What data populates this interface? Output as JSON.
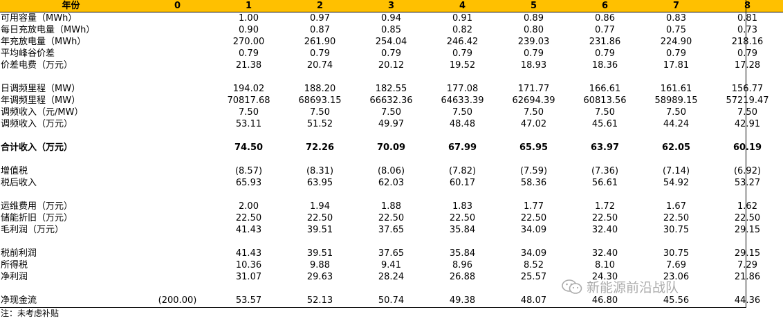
{
  "header": [
    "年份",
    "0",
    "1",
    "2",
    "3",
    "4",
    "5",
    "6",
    "7",
    "8"
  ],
  "rows": [
    {
      "label": "可用容量（MWh）",
      "values": [
        "",
        "1.00",
        "0.97",
        "0.94",
        "0.91",
        "0.89",
        "0.86",
        "0.83",
        "0.81"
      ]
    },
    {
      "label": "每日充放电量（MWh）",
      "values": [
        "",
        "0.90",
        "0.87",
        "0.85",
        "0.82",
        "0.80",
        "0.77",
        "0.75",
        "0.73"
      ]
    },
    {
      "label": "年充放电量（MWh）",
      "values": [
        "",
        "270.00",
        "261.90",
        "254.04",
        "246.42",
        "239.03",
        "231.86",
        "224.90",
        "218.16"
      ]
    },
    {
      "label": "平均峰谷价差",
      "values": [
        "",
        "0.79",
        "0.79",
        "0.79",
        "0.79",
        "0.79",
        "0.79",
        "0.79",
        "0.79"
      ]
    },
    {
      "label": "价差电费（万元）",
      "values": [
        "",
        "21.38",
        "20.74",
        "20.12",
        "19.52",
        "18.93",
        "18.36",
        "17.81",
        "17.28"
      ]
    },
    {
      "spacer": true
    },
    {
      "label": "日调频里程（MW）",
      "values": [
        "",
        "194.02",
        "188.20",
        "182.55",
        "177.08",
        "171.77",
        "166.61",
        "161.61",
        "156.77"
      ]
    },
    {
      "label": "年调频里程（MW）",
      "values": [
        "",
        "70817.68",
        "68693.15",
        "66632.36",
        "64633.39",
        "62694.39",
        "60813.56",
        "58989.15",
        "57219.47"
      ]
    },
    {
      "label": "调频收入（元/MW）",
      "values": [
        "",
        "7.50",
        "7.50",
        "7.50",
        "7.50",
        "7.50",
        "7.50",
        "7.50",
        "7.50"
      ]
    },
    {
      "label": "调频收入（万元）",
      "values": [
        "",
        "53.11",
        "51.52",
        "49.97",
        "48.48",
        "47.02",
        "45.61",
        "44.24",
        "42.91"
      ]
    },
    {
      "spacer": true
    },
    {
      "label": "合计收入（万元）",
      "bold": true,
      "values": [
        "",
        "74.50",
        "72.26",
        "70.09",
        "67.99",
        "65.95",
        "63.97",
        "62.05",
        "60.19"
      ]
    },
    {
      "spacer": true
    },
    {
      "label": "增值税",
      "values": [
        "",
        "(8.57)",
        "(8.31)",
        "(8.06)",
        "(7.82)",
        "(7.59)",
        "(7.36)",
        "(7.14)",
        "(6.92)"
      ]
    },
    {
      "label": "税后收入",
      "values": [
        "",
        "65.93",
        "63.95",
        "62.03",
        "60.17",
        "58.36",
        "56.61",
        "54.92",
        "53.27"
      ]
    },
    {
      "spacer": true
    },
    {
      "label": "运维费用（万元）",
      "values": [
        "",
        "2.00",
        "1.94",
        "1.88",
        "1.83",
        "1.77",
        "1.72",
        "1.67",
        "1.62"
      ]
    },
    {
      "label": "储能折旧（万元）",
      "values": [
        "",
        "22.50",
        "22.50",
        "22.50",
        "22.50",
        "22.50",
        "22.50",
        "22.50",
        "22.50"
      ]
    },
    {
      "label": "毛利润（万元）",
      "values": [
        "",
        "41.43",
        "39.51",
        "37.65",
        "35.84",
        "34.09",
        "32.40",
        "30.75",
        "29.15"
      ]
    },
    {
      "spacer": true
    },
    {
      "label": "税前利润",
      "values": [
        "",
        "41.43",
        "39.51",
        "37.65",
        "35.84",
        "34.09",
        "32.40",
        "30.75",
        "29.15"
      ]
    },
    {
      "label": "所得税",
      "values": [
        "",
        "10.36",
        "9.88",
        "9.41",
        "8.96",
        "8.52",
        "8.10",
        "7.69",
        "7.29"
      ]
    },
    {
      "label": "净利润",
      "values": [
        "",
        "31.07",
        "29.63",
        "28.24",
        "26.88",
        "25.57",
        "24.30",
        "23.06",
        "21.86"
      ]
    },
    {
      "spacer": true
    },
    {
      "label": "净现金流",
      "values": [
        "(200.00)",
        "53.57",
        "52.13",
        "50.74",
        "49.38",
        "48.07",
        "46.80",
        "45.56",
        "44.36"
      ]
    }
  ],
  "note": "注：未考虑补贴",
  "watermark": "新能源前沿战队",
  "colors": {
    "header_bg": "#ffc000"
  }
}
